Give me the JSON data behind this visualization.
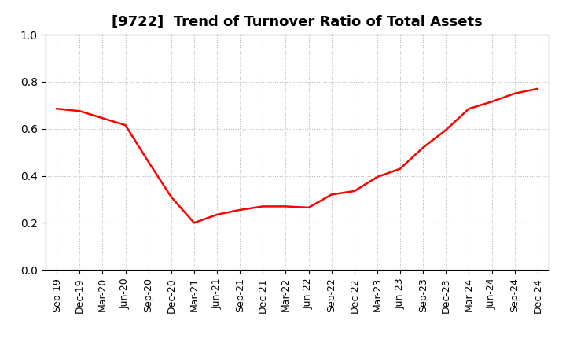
{
  "title": "[9722]  Trend of Turnover Ratio of Total Assets",
  "line_color": "#ff0000",
  "background_color": "#ffffff",
  "grid_color": "#bbbbbb",
  "ylim": [
    0.0,
    1.0
  ],
  "yticks": [
    0.0,
    0.2,
    0.4,
    0.6,
    0.8,
    1.0
  ],
  "x_labels": [
    "Sep-19",
    "Dec-19",
    "Mar-20",
    "Jun-20",
    "Sep-20",
    "Dec-20",
    "Mar-21",
    "Jun-21",
    "Sep-21",
    "Dec-21",
    "Mar-22",
    "Jun-22",
    "Sep-22",
    "Dec-22",
    "Mar-23",
    "Jun-23",
    "Sep-23",
    "Dec-23",
    "Mar-24",
    "Jun-24",
    "Sep-24",
    "Dec-24"
  ],
  "values": [
    0.685,
    0.675,
    0.645,
    0.615,
    0.46,
    0.31,
    0.2,
    0.235,
    0.255,
    0.27,
    0.27,
    0.265,
    0.32,
    0.335,
    0.395,
    0.43,
    0.52,
    0.595,
    0.685,
    0.715,
    0.75,
    0.77
  ],
  "title_fontsize": 13,
  "tick_fontsize": 9,
  "line_width": 1.8
}
